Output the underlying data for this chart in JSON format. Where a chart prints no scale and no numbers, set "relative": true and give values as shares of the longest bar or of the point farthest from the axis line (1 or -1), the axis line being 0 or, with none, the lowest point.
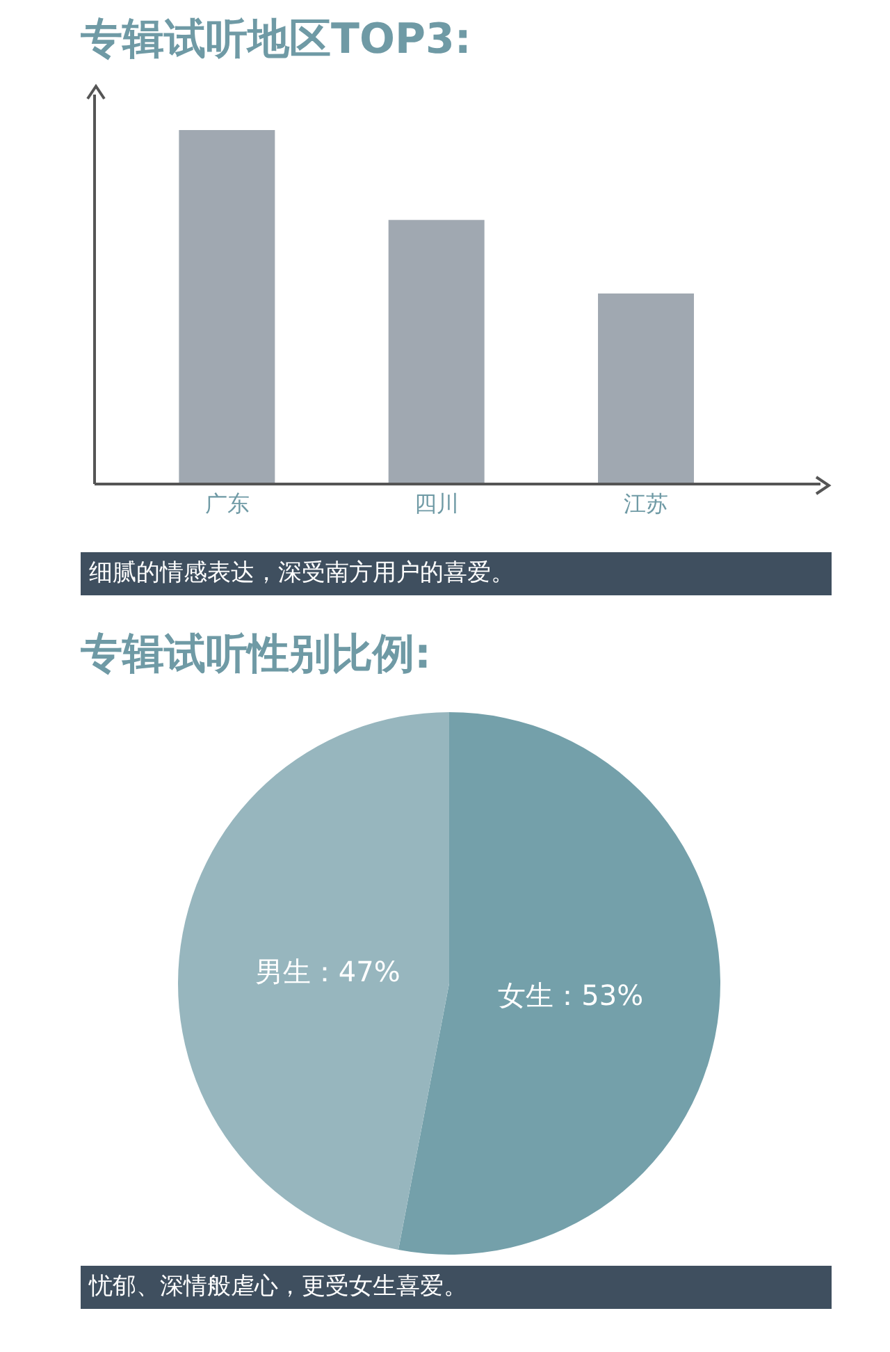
{
  "chart_data": [
    {
      "type": "bar",
      "title": "专辑试听地区TOP3:",
      "categories": [
        "广东",
        "四川",
        "江苏"
      ],
      "values": [
        1,
        0.746,
        0.538
      ],
      "color": "#a0a8b1",
      "relative": true,
      "grid": false,
      "legend": false,
      "annotations": [
        "细腻的情感表达，深受南方用户的喜爱。"
      ]
    },
    {
      "type": "pie",
      "title": "专辑试听性别比例:",
      "categories": [
        "女生",
        "男生"
      ],
      "values": [
        53,
        47
      ],
      "colors": [
        "#74a0aa",
        "#97b6be"
      ],
      "value_labels": [
        "：53%",
        "：47%"
      ],
      "legend": false,
      "annotations": [
        "忧郁、深情般虐心，更受女生喜爱。"
      ]
    }
  ]
}
